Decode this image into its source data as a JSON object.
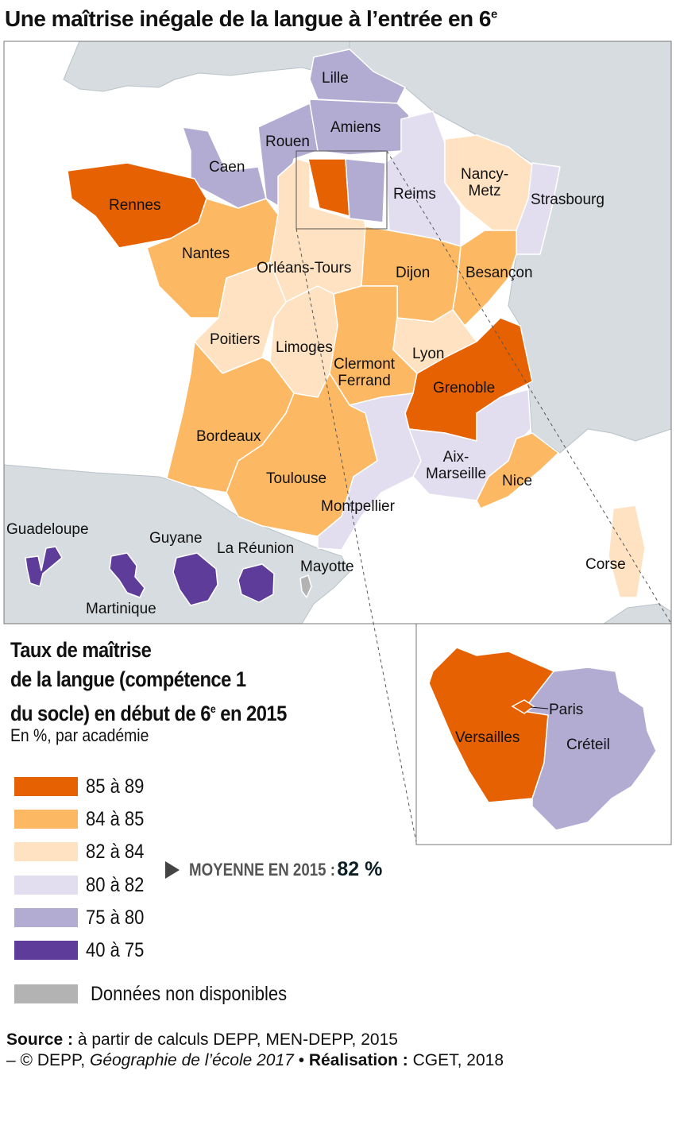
{
  "title": {
    "text": "Une maîtrise inégale de la langue à l’entrée en 6",
    "sup": "e"
  },
  "colors": {
    "c85_89": "#e66101",
    "c84_85": "#fdb863",
    "c82_84": "#fee2c2",
    "c80_82": "#e2def0",
    "c75_80": "#b2abd2",
    "c40_75": "#5e3c99",
    "na": "#b3b3b3",
    "neighbor_land": "#d6dcdf",
    "sea": "#ffffff"
  },
  "map": {
    "academies": [
      {
        "name": "Lille",
        "class": "75 à 80"
      },
      {
        "name": "Amiens",
        "class": "75 à 80"
      },
      {
        "name": "Rouen",
        "class": "75 à 80"
      },
      {
        "name": "Caen",
        "class": "75 à 80"
      },
      {
        "name": "Rennes",
        "class": "85 à 89"
      },
      {
        "name": "Nantes",
        "class": "84 à 85"
      },
      {
        "name": "Orléans-Tours",
        "class": "82 à 84"
      },
      {
        "name": "Reims",
        "class": "80 à 82"
      },
      {
        "name": "Nancy-\nMetz",
        "class": "82 à 84"
      },
      {
        "name": "Strasbourg",
        "class": "80 à 82"
      },
      {
        "name": "Dijon",
        "class": "84 à 85"
      },
      {
        "name": "Besançon",
        "class": "84 à 85"
      },
      {
        "name": "Poitiers",
        "class": "82 à 84"
      },
      {
        "name": "Limoges",
        "class": "82 à 84"
      },
      {
        "name": "Clermont\nFerrand",
        "class": "84 à 85"
      },
      {
        "name": "Lyon",
        "class": "82 à 84"
      },
      {
        "name": "Grenoble",
        "class": "85 à 89"
      },
      {
        "name": "Bordeaux",
        "class": "84 à 85"
      },
      {
        "name": "Toulouse",
        "class": "84 à 85"
      },
      {
        "name": "Montpellier",
        "class": "80 à 82"
      },
      {
        "name": "Aix-\nMarseille",
        "class": "80 à 82"
      },
      {
        "name": "Nice",
        "class": "84 à 85"
      },
      {
        "name": "Corse",
        "class": "82 à 84"
      },
      {
        "name": "Guadeloupe",
        "class": "40 à 75"
      },
      {
        "name": "Martinique",
        "class": "40 à 75"
      },
      {
        "name": "Guyane",
        "class": "40 à 75"
      },
      {
        "name": "La Réunion",
        "class": "40 à 75"
      },
      {
        "name": "Mayotte",
        "class": "Données non disponibles"
      }
    ],
    "inset": [
      {
        "name": "Versailles",
        "class": "85 à 89"
      },
      {
        "name": "Paris",
        "class": "85 à 89"
      },
      {
        "name": "Créteil",
        "class": "75 à 80"
      }
    ]
  },
  "legend": {
    "title_line1": "Taux de maîtrise",
    "title_line2": "de la langue (compétence 1",
    "title_line3a": "du socle) en début de 6",
    "title_line3sup": "e",
    "title_line3b": " en 2015",
    "subtitle": "En %, par académie",
    "items": [
      "85 à 89",
      "84 à 85",
      "82 à 84",
      "80 à 82",
      "75 à 80",
      "40 à 75"
    ],
    "na_label": "Données non disponibles"
  },
  "average": {
    "label": "MOYENNE EN 2015 :",
    "value": "82 %"
  },
  "source": {
    "source_label": "Source :",
    "source_text": " à partir de calculs DEPP, MEN-DEPP, 2015",
    "line2_a": "– © DEPP, ",
    "line2_italic": "Géographie de l’école 2017",
    "line2_b": " • ",
    "realisation_label": "Réalisation :",
    "realisation_text": " CGET, 2018"
  }
}
